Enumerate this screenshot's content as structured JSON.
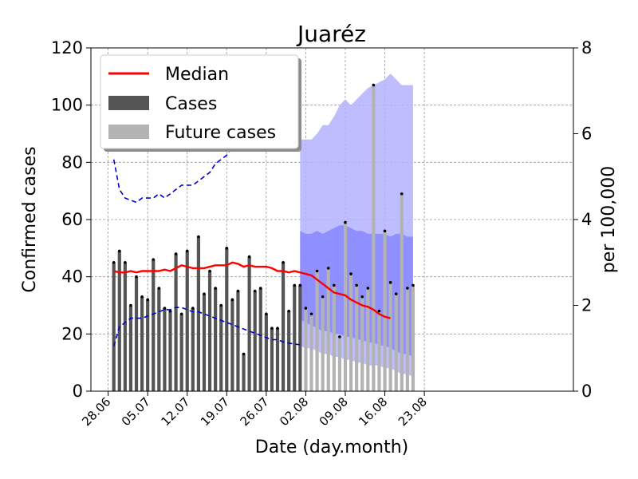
{
  "chart_data": {
    "type": "bar",
    "title": "Juaréz",
    "xlabel": "Date (day.month)",
    "ylabel": "Confirmed cases",
    "ylabel_right": "per 100,000",
    "ylim": [
      0,
      120
    ],
    "ylim_right": [
      0,
      8
    ],
    "y_ticks": [
      "0",
      "20",
      "40",
      "60",
      "80",
      "100",
      "120"
    ],
    "y_ticks_right": [
      "0",
      "2",
      "4",
      "6",
      "8"
    ],
    "x_tick_labels": [
      "28.06",
      "05.07",
      "12.07",
      "19.07",
      "26.07",
      "02.08",
      "09.08",
      "16.08",
      "23.08"
    ],
    "grid": true,
    "legend_position": "top-left",
    "legend": [
      "Median",
      "Cases",
      "Future cases"
    ],
    "colors": {
      "median": "#ff0000",
      "cases": "#555555",
      "future_cases": "#b3b3b3",
      "band_outer": "#b3b3ff",
      "band_inner": "#7f7fff",
      "dashed": "#0000cc"
    },
    "cases": [
      45,
      49,
      45,
      30,
      40,
      33,
      32,
      46,
      36,
      29,
      28,
      48,
      27,
      49,
      29,
      54,
      34,
      42,
      36,
      30,
      50,
      32,
      35,
      13,
      47,
      35,
      36,
      27,
      22,
      22,
      45,
      28,
      37,
      37
    ],
    "future_cases": [
      29,
      27,
      42,
      33,
      43,
      37,
      19,
      59,
      41,
      37,
      33,
      36,
      107,
      28,
      56,
      38,
      34,
      69,
      36,
      37
    ],
    "median": [
      42,
      41.5,
      41.5,
      42,
      41.5,
      42,
      42,
      42,
      42,
      42.5,
      42,
      43,
      44,
      43.5,
      43,
      43,
      43,
      43.5,
      44,
      44,
      44,
      45,
      44.5,
      43.5,
      44,
      43.5,
      43.5,
      43.5,
      43,
      42,
      42,
      41.5,
      42,
      41.5,
      41,
      40.5,
      39,
      37.5,
      36,
      34.5,
      34,
      33.5,
      32,
      31,
      30,
      29.5,
      28.5,
      27,
      26,
      25.5
    ],
    "upper_dashed_right": [
      5.4,
      4.7,
      4.5,
      4.45,
      4.4,
      4.5,
      4.5,
      4.5,
      4.6,
      4.5,
      4.6,
      4.7,
      4.8,
      4.8,
      4.8,
      4.9,
      5.0,
      5.1,
      5.3,
      5.4,
      5.5,
      5.7,
      5.8,
      5.9,
      6.0,
      6.1,
      6.2,
      6.25,
      6.3,
      6.3,
      6.33,
      6.36,
      6.38,
      6.4
    ],
    "lower_dashed_right": [
      1.05,
      1.5,
      1.6,
      1.7,
      1.7,
      1.7,
      1.75,
      1.8,
      1.85,
      1.9,
      1.9,
      1.95,
      1.95,
      1.9,
      1.85,
      1.85,
      1.8,
      1.75,
      1.7,
      1.65,
      1.6,
      1.55,
      1.5,
      1.45,
      1.4,
      1.35,
      1.3,
      1.25,
      1.2,
      1.2,
      1.15,
      1.12,
      1.1,
      1.08
    ],
    "band_outer_upper": [
      88,
      88,
      88,
      90,
      93,
      93,
      96,
      100,
      102,
      100,
      102,
      104,
      106,
      107,
      108,
      109,
      111,
      109,
      107,
      107,
      107
    ],
    "band_outer_lower": [
      16,
      15,
      15,
      14,
      13,
      13,
      12,
      12,
      11,
      11,
      10,
      10,
      9,
      9,
      9,
      8,
      8,
      7,
      6,
      6,
      5
    ],
    "band_inner_upper": [
      56,
      55,
      55,
      56,
      55,
      56,
      57,
      58,
      58,
      57,
      56,
      56,
      55,
      55,
      55,
      55,
      54,
      55,
      55,
      54,
      54
    ],
    "band_inner_lower": [
      25,
      24,
      23,
      22,
      21,
      21,
      20,
      20,
      19,
      19,
      18,
      18,
      17,
      17,
      16,
      16,
      15,
      14,
      13,
      13,
      12
    ]
  }
}
